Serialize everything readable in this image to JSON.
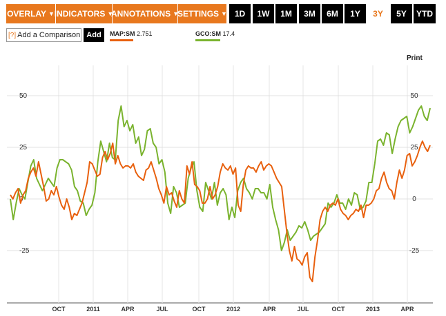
{
  "toolbar": {
    "menus": [
      {
        "label": "OVERLAY"
      },
      {
        "label": "INDICATORS"
      },
      {
        "label": "ANNOTATIONS"
      },
      {
        "label": "SETTINGS"
      }
    ],
    "ranges": [
      "1D",
      "1W",
      "1M",
      "3M",
      "6M",
      "1Y",
      "3Y",
      "5Y",
      "YTD"
    ],
    "active_range": "3Y"
  },
  "comparison": {
    "help": "[?]",
    "label": "Add a Comparison",
    "button": "Add"
  },
  "legend": [
    {
      "symbol": "MAP:SM",
      "value": "2.751",
      "color": "#e8600e"
    },
    {
      "symbol": "GCO:SM",
      "value": "17.4",
      "color": "#7ab32e"
    }
  ],
  "print_label": "Print",
  "colors": {
    "accent": "#e8781e",
    "map": "#e8600e",
    "gco": "#7ab32e"
  },
  "chart_data": {
    "type": "line",
    "x_tick_labels": [
      "OCT",
      "2011",
      "APR",
      "JUL",
      "OCT",
      "2012",
      "APR",
      "JUL",
      "OCT",
      "2013",
      "APR"
    ],
    "y_ticks": [
      50,
      25,
      0,
      -25
    ],
    "ylim": [
      -50,
      60
    ],
    "grid": true,
    "series": [
      {
        "name": "MAP:SM",
        "color": "#e8600e",
        "values": [
          2,
          0,
          3,
          5,
          -2,
          2,
          4,
          10,
          13,
          15,
          11,
          18,
          12,
          6,
          -1,
          0,
          4,
          2,
          6,
          1,
          -3,
          -5,
          0,
          -4,
          -10,
          -7,
          -8,
          -5,
          -2,
          3,
          8,
          18,
          17,
          14,
          11,
          12,
          20,
          23,
          19,
          22,
          27,
          17,
          21,
          17,
          15,
          16,
          16,
          15,
          17,
          13,
          11,
          10,
          9,
          14,
          15,
          18,
          14,
          10,
          5,
          2,
          -2,
          6,
          2,
          3,
          -1,
          -4,
          4,
          0,
          -2,
          16,
          12,
          18,
          7,
          6,
          4,
          -2,
          -2,
          0,
          6,
          0,
          2,
          6,
          13,
          17,
          15,
          14,
          16,
          12,
          15,
          -3,
          -6,
          7,
          14,
          16,
          15,
          15,
          13,
          16,
          18,
          14,
          16,
          17,
          16,
          13,
          10,
          8,
          6,
          -5,
          -16,
          -25,
          -30,
          -23,
          -29,
          -30,
          -32,
          -28,
          -26,
          -38,
          -40,
          -28,
          -20,
          -10,
          -6,
          -4,
          -6,
          -3,
          -2,
          -3,
          0,
          -5,
          -7,
          -8,
          -10,
          -8,
          -7,
          -5,
          -6,
          -3,
          -9,
          -3,
          -3,
          -2,
          0,
          4,
          5,
          10,
          13,
          8,
          5,
          4,
          0,
          8,
          14,
          10,
          14,
          21,
          22,
          16,
          18,
          21,
          25,
          28,
          25,
          23,
          26
        ]
      },
      {
        "name": "GCO:SM",
        "color": "#7ab32e",
        "values": [
          0,
          -10,
          -2,
          5,
          2,
          0,
          8,
          16,
          19,
          10,
          7,
          4,
          7,
          10,
          8,
          6,
          15,
          19,
          19,
          18,
          17,
          14,
          6,
          4,
          -1,
          -2,
          -8,
          -5,
          -3,
          3,
          18,
          28,
          23,
          18,
          27,
          20,
          19,
          38,
          45,
          35,
          38,
          33,
          36,
          27,
          30,
          21,
          24,
          33,
          34,
          27,
          25,
          17,
          19,
          13,
          -2,
          -7,
          6,
          3,
          -4,
          -3,
          -2,
          10,
          15,
          18,
          4,
          -4,
          -6,
          8,
          4,
          0,
          8,
          -3,
          3,
          5,
          2,
          -10,
          -4,
          -9,
          4,
          8,
          10,
          5,
          3,
          0,
          5,
          5,
          3,
          3,
          0,
          7,
          -4,
          -10,
          -15,
          -25,
          -21,
          -15,
          -20,
          -18,
          -16,
          -13,
          -14,
          -11,
          -15,
          -20,
          -18,
          -17,
          -16,
          -14,
          -12,
          -2,
          -4,
          -2,
          2,
          -2,
          -2,
          -5,
          0,
          -3,
          3,
          2,
          -5,
          -4,
          -1,
          8,
          8,
          17,
          28,
          29,
          26,
          32,
          31,
          22,
          29,
          35,
          38,
          39,
          40,
          32,
          35,
          39,
          43,
          45,
          40,
          38,
          44
        ]
      }
    ]
  }
}
